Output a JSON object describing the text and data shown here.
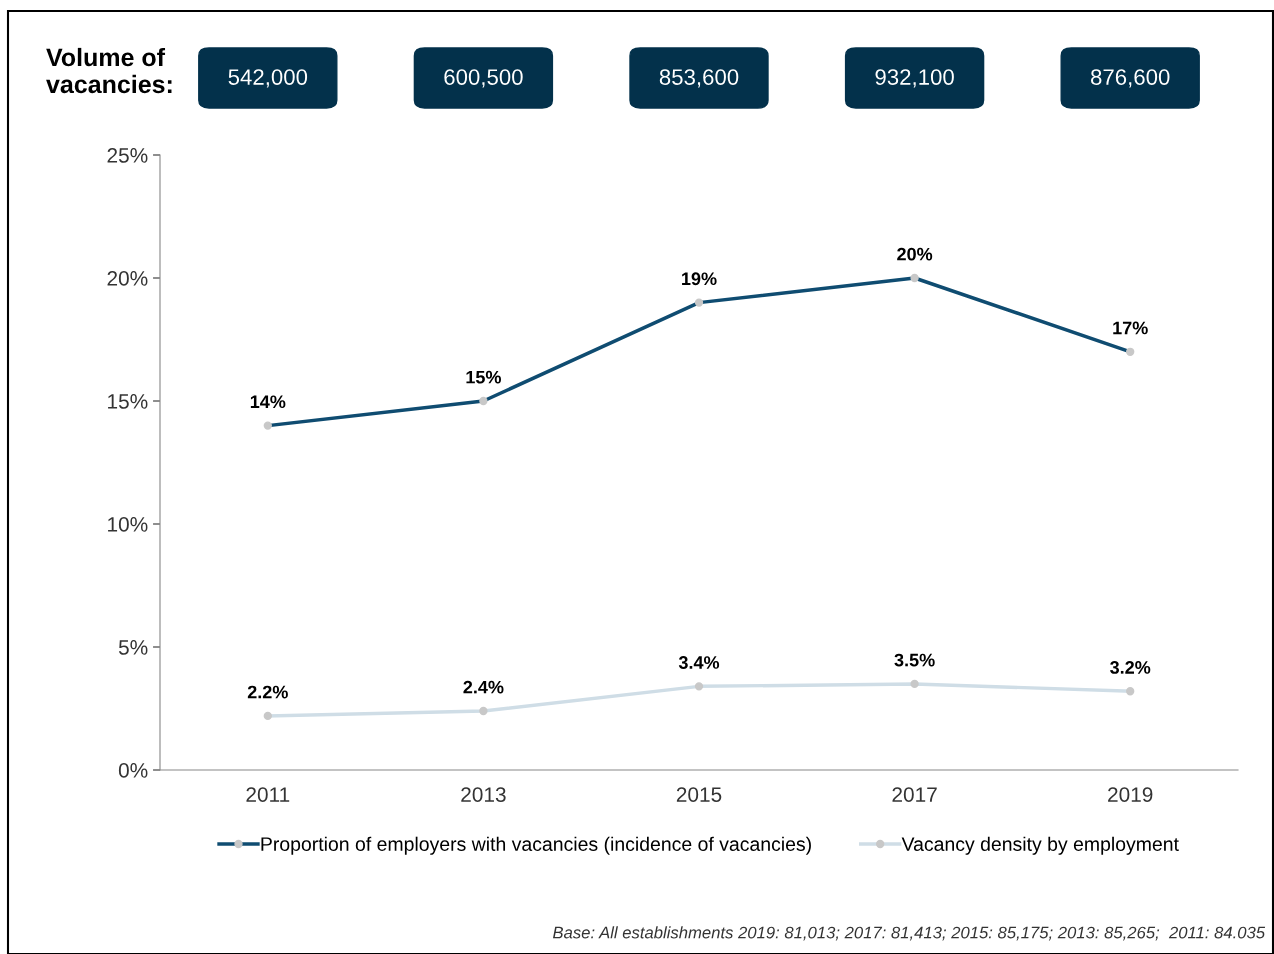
{
  "chart_data": {
    "type": "line",
    "categories": [
      "2011",
      "2013",
      "2015",
      "2017",
      "2019"
    ],
    "series": [
      {
        "name": "Proportion of employers with vacancies (incidence of vacancies)",
        "color": "#0f4c71",
        "values": [
          14,
          15,
          19,
          20,
          17
        ],
        "value_labels": [
          "14%",
          "15%",
          "19%",
          "20%",
          "17%"
        ]
      },
      {
        "name": "Vacancy density by employment",
        "color": "#cfdde6",
        "values": [
          2.2,
          2.4,
          3.4,
          3.5,
          3.2
        ],
        "value_labels": [
          "2.2%",
          "2.4%",
          "3.4%",
          "3.5%",
          "3.2%"
        ]
      }
    ],
    "ylim": [
      0,
      25
    ],
    "yticks": [
      {
        "value": 0,
        "label": "0%"
      },
      {
        "value": 5,
        "label": "5%"
      },
      {
        "value": 10,
        "label": "10%"
      },
      {
        "value": 15,
        "label": "15%"
      },
      {
        "value": 20,
        "label": "20%"
      },
      {
        "value": 25,
        "label": "25%"
      }
    ],
    "marker": "circle",
    "line_style": "solid",
    "grid": false,
    "legend": "bottom",
    "annotations": [
      "Volume of\nvacancies:",
      "542,000",
      "600,500",
      "853,600",
      "932,100",
      "876,600",
      "Base: All establishments 2019: 81,013; 2017: 81,413; 2015: 85,175; 2013: 85,265;  2011: 84.035"
    ]
  }
}
